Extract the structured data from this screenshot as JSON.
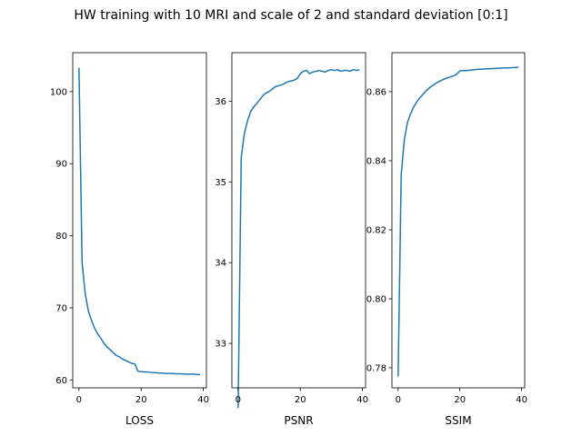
{
  "figure": {
    "suptitle": "HW training with 10 MRI and scale of 2 and standard deviation [0:1]",
    "line_color": "#1f77b4"
  },
  "chart_data": [
    {
      "type": "line",
      "xlabel": "LOSS",
      "ylabel": "",
      "title": "",
      "xlim": [
        -2,
        41
      ],
      "ylim": [
        58.9,
        105.4
      ],
      "xticks": [
        0,
        20,
        40
      ],
      "yticks": [
        60,
        70,
        80,
        90,
        100
      ],
      "ytick_labels": [
        "60",
        "70",
        "80",
        "90",
        "100"
      ],
      "grid": false,
      "x": [
        0,
        1,
        2,
        3,
        4,
        5,
        6,
        7,
        8,
        9,
        10,
        11,
        12,
        13,
        14,
        15,
        16,
        17,
        18,
        19,
        20,
        21,
        22,
        23,
        24,
        25,
        26,
        27,
        28,
        29,
        30,
        31,
        32,
        33,
        34,
        35,
        36,
        37,
        38,
        39
      ],
      "y": [
        103.3,
        76.3,
        72.0,
        69.6,
        68.3,
        67.2,
        66.4,
        65.8,
        65.1,
        64.6,
        64.2,
        63.8,
        63.4,
        63.2,
        62.9,
        62.7,
        62.5,
        62.3,
        62.2,
        61.2,
        61.15,
        61.1,
        61.1,
        61.05,
        61.0,
        61.0,
        60.95,
        60.95,
        60.9,
        60.9,
        60.9,
        60.85,
        60.85,
        60.85,
        60.8,
        60.8,
        60.8,
        60.8,
        60.75,
        60.75
      ]
    },
    {
      "type": "line",
      "xlabel": "PSNR",
      "ylabel": "",
      "title": "",
      "xlim": [
        -2,
        41
      ],
      "ylim": [
        32.45,
        36.6
      ],
      "xticks": [
        0,
        20,
        40
      ],
      "yticks": [
        33,
        34,
        35,
        36
      ],
      "ytick_labels": [
        "33",
        "34",
        "35",
        "36"
      ],
      "grid": false,
      "x": [
        0,
        1,
        2,
        3,
        4,
        5,
        6,
        7,
        8,
        9,
        10,
        11,
        12,
        13,
        14,
        15,
        16,
        17,
        18,
        19,
        20,
        21,
        22,
        23,
        24,
        25,
        26,
        27,
        28,
        29,
        30,
        31,
        32,
        33,
        34,
        35,
        36,
        37,
        38,
        39
      ],
      "y": [
        32.2,
        35.3,
        35.6,
        35.75,
        35.87,
        35.93,
        35.97,
        36.02,
        36.07,
        36.1,
        36.12,
        36.15,
        36.18,
        36.19,
        36.2,
        36.22,
        36.24,
        36.25,
        36.26,
        36.28,
        36.34,
        36.37,
        36.38,
        36.34,
        36.36,
        36.37,
        36.38,
        36.37,
        36.36,
        36.38,
        36.39,
        36.38,
        36.39,
        36.37,
        36.38,
        36.38,
        36.37,
        36.39,
        36.38,
        36.39
      ]
    },
    {
      "type": "line",
      "xlabel": "SSIM",
      "ylabel": "",
      "title": "",
      "xlim": [
        -2,
        41
      ],
      "ylim": [
        0.7742,
        0.8713
      ],
      "xticks": [
        0,
        20,
        40
      ],
      "yticks": [
        0.78,
        0.8,
        0.82,
        0.84,
        0.86
      ],
      "ytick_labels": [
        "0.78",
        "0.80",
        "0.82",
        "0.84",
        "0.86"
      ],
      "grid": false,
      "x": [
        0,
        1,
        2,
        3,
        4,
        5,
        6,
        7,
        8,
        9,
        10,
        11,
        12,
        13,
        14,
        15,
        16,
        17,
        18,
        19,
        20,
        21,
        22,
        23,
        24,
        25,
        26,
        27,
        28,
        29,
        30,
        31,
        32,
        33,
        34,
        35,
        36,
        37,
        38,
        39
      ],
      "y": [
        0.7775,
        0.836,
        0.846,
        0.851,
        0.8535,
        0.8555,
        0.857,
        0.8582,
        0.8592,
        0.8602,
        0.861,
        0.8617,
        0.8623,
        0.8628,
        0.8633,
        0.8637,
        0.864,
        0.8643,
        0.8646,
        0.8651,
        0.866,
        0.8661,
        0.8661,
        0.8662,
        0.8663,
        0.8664,
        0.8665,
        0.8665,
        0.8666,
        0.8666,
        0.8667,
        0.8667,
        0.8668,
        0.8668,
        0.8669,
        0.8669,
        0.8669,
        0.867,
        0.867,
        0.8671
      ]
    }
  ]
}
